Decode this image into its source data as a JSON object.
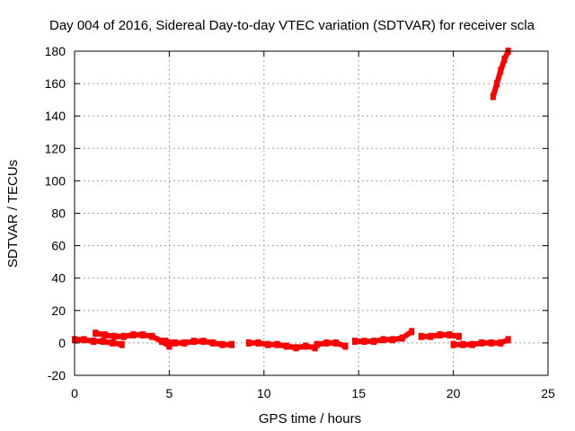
{
  "chart_data": {
    "type": "scatter",
    "title": "Day 004 of 2016, Sidereal Day-to-day VTEC variation (SDTVAR) for receiver scla",
    "xlabel": "GPS time / hours",
    "ylabel": "SDTVAR / TECUs",
    "xlim": [
      0,
      25
    ],
    "ylim": [
      -20,
      180
    ],
    "x_ticks": [
      "0",
      "5",
      "10",
      "15",
      "20",
      "25"
    ],
    "y_ticks": [
      "-20",
      "0",
      "20",
      "40",
      "60",
      "80",
      "100",
      "120",
      "140",
      "160",
      "180"
    ],
    "grid": true,
    "marker_color": "#ff0000",
    "series": [
      {
        "x": [
          0.0,
          0.5,
          1.0,
          1.5,
          2.0,
          2.5
        ],
        "y": [
          2,
          2,
          1,
          1,
          0,
          -1
        ]
      },
      {
        "x": [
          1.1,
          1.6,
          2.1,
          2.6,
          3.1,
          3.6,
          4.1,
          4.6,
          5.0
        ],
        "y": [
          6,
          5,
          4,
          4,
          5,
          5,
          4,
          1,
          -2
        ]
      },
      {
        "x": [
          4.8,
          5.3,
          5.8,
          6.3,
          6.8,
          7.3,
          7.8,
          8.3
        ],
        "y": [
          1,
          0,
          0,
          1,
          1,
          0,
          -1,
          -1
        ]
      },
      {
        "x": [
          9.2,
          9.7,
          10.2,
          10.7,
          11.2,
          11.7,
          12.2,
          12.7
        ],
        "y": [
          0,
          0,
          -1,
          -1,
          -2,
          -3,
          -2,
          -3
        ]
      },
      {
        "x": [
          12.8,
          13.3,
          13.8,
          14.3
        ],
        "y": [
          -1,
          0,
          0,
          -2
        ]
      },
      {
        "x": [
          14.8,
          15.3,
          15.8,
          16.3,
          16.8,
          17.3,
          17.8
        ],
        "y": [
          1,
          1,
          1,
          2,
          2,
          3,
          7
        ]
      },
      {
        "x": [
          18.3,
          18.8,
          19.3,
          19.8,
          20.3
        ],
        "y": [
          4,
          4,
          5,
          5,
          4
        ]
      },
      {
        "x": [
          20.0,
          20.5,
          21.0,
          21.5,
          22.0,
          22.5,
          22.9
        ],
        "y": [
          -1,
          -1,
          -1,
          0,
          0,
          0,
          2
        ]
      },
      {
        "x": [
          22.1,
          22.3,
          22.5,
          22.7,
          22.9
        ],
        "y": [
          152,
          160,
          168,
          175,
          180
        ]
      }
    ]
  }
}
